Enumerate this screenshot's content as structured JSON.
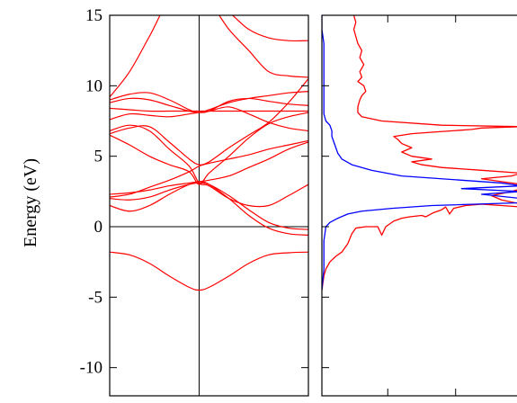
{
  "chart_data": [
    {
      "type": "line",
      "title": "",
      "ylabel": "Energy (eV)",
      "xlabel": "",
      "ylim": [
        -12,
        15
      ],
      "yticks": [
        15,
        10,
        5,
        0,
        -5,
        -10
      ],
      "ytick_labels": [
        "15",
        "10",
        "5",
        "0",
        "-5",
        "-10"
      ],
      "x_range": [
        0,
        1
      ],
      "vline_x": 0.45,
      "hline_y": 0,
      "grid": false,
      "legend": "none",
      "colors": {
        "bands": "#ff0000",
        "axes": "#000000"
      },
      "series": [
        {
          "x": [
            0,
            0.1,
            0.2,
            0.3,
            0.4,
            0.45,
            0.5,
            0.6,
            0.7,
            0.8,
            0.9,
            1.0
          ],
          "values": [
            -1.8,
            -2.0,
            -2.6,
            -3.5,
            -4.3,
            -4.5,
            -4.3,
            -3.5,
            -2.6,
            -2.0,
            -1.85,
            -1.8
          ]
        },
        {
          "x": [
            0,
            0.1,
            0.2,
            0.3,
            0.4,
            0.45,
            0.5,
            0.6,
            0.7,
            0.8,
            0.9,
            1.0
          ],
          "values": [
            1.5,
            1.1,
            1.5,
            2.3,
            3.0,
            3.2,
            3.0,
            2.0,
            0.8,
            -0.1,
            -0.5,
            -0.6
          ]
        },
        {
          "x": [
            0,
            0.1,
            0.2,
            0.3,
            0.4,
            0.45,
            0.5,
            0.6,
            0.7,
            0.8,
            0.9,
            1.0
          ],
          "values": [
            2.0,
            1.9,
            2.1,
            2.6,
            3.0,
            3.1,
            3.0,
            2.2,
            1.2,
            0.3,
            -0.1,
            -0.2
          ]
        },
        {
          "x": [
            0,
            0.1,
            0.2,
            0.3,
            0.4,
            0.45,
            0.5,
            0.6,
            0.7,
            0.8,
            0.9,
            1.0
          ],
          "values": [
            2.3,
            2.4,
            2.6,
            2.9,
            3.1,
            3.2,
            3.3,
            3.6,
            4.2,
            4.8,
            5.5,
            6.0
          ]
        },
        {
          "x": [
            0,
            0.1,
            0.2,
            0.3,
            0.4,
            0.45,
            0.5,
            0.6,
            0.7,
            0.8,
            0.9,
            1.0
          ],
          "values": [
            2.1,
            2.3,
            2.8,
            3.3,
            3.9,
            4.3,
            4.5,
            4.8,
            5.1,
            5.5,
            5.8,
            6.1
          ]
        },
        {
          "x": [
            0,
            0.1,
            0.2,
            0.3,
            0.4,
            0.45,
            0.5,
            0.6,
            0.7,
            0.8,
            0.9,
            1.0
          ],
          "values": [
            6.5,
            5.8,
            5.0,
            4.4,
            3.9,
            3.0,
            3.8,
            5.0,
            6.3,
            7.3,
            7.8,
            8.1
          ]
        },
        {
          "x": [
            0,
            0.1,
            0.2,
            0.3,
            0.4,
            0.45,
            0.5,
            0.6,
            0.7,
            0.8,
            0.9,
            1.0
          ],
          "values": [
            6.8,
            7.2,
            6.8,
            5.5,
            4.3,
            3.1,
            2.9,
            2.0,
            1.5,
            1.5,
            2.2,
            3.0
          ]
        },
        {
          "x": [
            0,
            0.1,
            0.2,
            0.3,
            0.4,
            0.45,
            0.5,
            0.6,
            0.7,
            0.8,
            0.9,
            1.0
          ],
          "values": [
            6.6,
            7.0,
            7.1,
            6.0,
            4.8,
            4.4,
            4.6,
            5.6,
            6.5,
            7.4,
            8.8,
            10.5
          ]
        },
        {
          "x": [
            0,
            0.1,
            0.2,
            0.3,
            0.4,
            0.45,
            0.5,
            0.6,
            0.7,
            0.8,
            0.9,
            1.0
          ],
          "values": [
            7.6,
            8.0,
            7.9,
            7.8,
            8.0,
            8.1,
            8.2,
            8.5,
            8.0,
            7.4,
            7.0,
            6.8
          ]
        },
        {
          "x": [
            0,
            0.1,
            0.2,
            0.3,
            0.4,
            0.45,
            0.5,
            0.6,
            0.7,
            0.8,
            0.9,
            1.0
          ],
          "values": [
            8.8,
            9.1,
            9.0,
            8.6,
            8.2,
            8.1,
            8.2,
            8.9,
            9.1,
            8.9,
            8.7,
            8.6
          ]
        },
        {
          "x": [
            0,
            0.1,
            0.2,
            0.3,
            0.4,
            0.45,
            0.5,
            0.6,
            0.7,
            0.8,
            0.9,
            1.0
          ],
          "values": [
            9.0,
            9.4,
            9.5,
            9.0,
            8.3,
            8.1,
            8.3,
            8.8,
            9.1,
            9.3,
            9.5,
            9.6
          ]
        },
        {
          "x": [
            0,
            0.1,
            0.2,
            0.3,
            0.4,
            0.45,
            0.5,
            0.6,
            0.7,
            0.8,
            0.9,
            1.0
          ],
          "values": [
            8.4,
            8.3,
            8.2,
            8.2,
            8.2,
            8.2,
            8.2,
            8.2,
            8.2,
            8.2,
            8.2,
            8.2
          ]
        },
        {
          "x": [
            0,
            0.1,
            0.2,
            0.3,
            0.4,
            0.45,
            0.5,
            0.6,
            0.7,
            0.8,
            0.9,
            1.0
          ],
          "values": [
            9.2,
            11.0,
            13.5,
            16.0,
            16.0,
            16.0,
            16.0,
            16.0,
            16.0,
            16.0,
            16.0,
            16.0
          ]
        },
        {
          "x": [
            0,
            0.1,
            0.2,
            0.3,
            0.4,
            0.45,
            0.5,
            0.6,
            0.7,
            0.8,
            0.9,
            1.0
          ],
          "values": [
            16.0,
            16.0,
            16.0,
            16.0,
            16.0,
            16.0,
            16.0,
            15.2,
            14.0,
            13.4,
            13.2,
            13.2
          ]
        },
        {
          "x": [
            0,
            0.1,
            0.2,
            0.3,
            0.4,
            0.45,
            0.5,
            0.6,
            0.7,
            0.8,
            0.9,
            1.0
          ],
          "values": [
            16.0,
            16.0,
            16.0,
            16.0,
            16.0,
            16.0,
            16.0,
            14.0,
            12.5,
            11.0,
            10.7,
            10.6
          ]
        }
      ]
    },
    {
      "type": "line",
      "title": "",
      "xlabel": "",
      "ylabel": "",
      "ylim": [
        -12,
        15
      ],
      "xlim": [
        0,
        1
      ],
      "xticks": [
        0.33,
        0.67
      ],
      "yticks": [
        15,
        10,
        5,
        0,
        -5,
        -10
      ],
      "grid": false,
      "legend": "none",
      "colors": {
        "total": "#ff0000",
        "partial": "#0000ff"
      },
      "series": [
        {
          "color": "#ff0000",
          "points": [
            [
              0.0,
              -4.5
            ],
            [
              0.01,
              -3.5
            ],
            [
              0.02,
              -3.0
            ],
            [
              0.04,
              -2.5
            ],
            [
              0.07,
              -2.1
            ],
            [
              0.1,
              -1.8
            ],
            [
              0.13,
              -1.2
            ],
            [
              0.15,
              -0.5
            ],
            [
              0.17,
              -0.1
            ],
            [
              0.22,
              0.0
            ],
            [
              0.28,
              0.0
            ],
            [
              0.3,
              -0.6
            ],
            [
              0.32,
              0.0
            ],
            [
              0.36,
              0.4
            ],
            [
              0.4,
              0.6
            ],
            [
              0.44,
              0.7
            ],
            [
              0.5,
              0.8
            ],
            [
              0.52,
              0.7
            ],
            [
              0.56,
              1.0
            ],
            [
              0.6,
              1.2
            ],
            [
              0.62,
              1.4
            ],
            [
              0.64,
              0.9
            ],
            [
              0.66,
              1.3
            ],
            [
              0.72,
              1.5
            ],
            [
              0.8,
              1.6
            ],
            [
              0.9,
              1.5
            ],
            [
              1.0,
              1.4
            ],
            [
              1.0,
              1.6
            ],
            [
              0.9,
              1.9
            ],
            [
              0.85,
              2.2
            ],
            [
              0.95,
              2.5
            ],
            [
              1.0,
              2.7
            ],
            [
              1.0,
              3.0
            ],
            [
              0.9,
              3.2
            ],
            [
              0.8,
              3.4
            ],
            [
              0.95,
              3.6
            ],
            [
              1.0,
              3.8
            ],
            [
              0.8,
              4.0
            ],
            [
              0.6,
              4.2
            ],
            [
              0.5,
              4.4
            ],
            [
              0.45,
              4.6
            ],
            [
              0.55,
              4.8
            ],
            [
              0.45,
              5.0
            ],
            [
              0.4,
              5.3
            ],
            [
              0.45,
              5.6
            ],
            [
              0.4,
              5.9
            ],
            [
              0.38,
              6.2
            ],
            [
              0.36,
              6.4
            ],
            [
              0.45,
              6.6
            ],
            [
              0.55,
              6.7
            ],
            [
              0.75,
              6.9
            ],
            [
              0.8,
              7.0
            ],
            [
              1.0,
              7.1
            ],
            [
              0.6,
              7.2
            ],
            [
              0.3,
              7.5
            ],
            [
              0.2,
              7.8
            ],
            [
              0.18,
              8.1
            ],
            [
              0.18,
              8.5
            ],
            [
              0.19,
              9.0
            ],
            [
              0.2,
              9.3
            ],
            [
              0.22,
              9.6
            ],
            [
              0.21,
              10.0
            ],
            [
              0.18,
              10.3
            ],
            [
              0.2,
              10.6
            ],
            [
              0.19,
              11.0
            ],
            [
              0.21,
              11.5
            ],
            [
              0.19,
              12.0
            ],
            [
              0.2,
              12.5
            ],
            [
              0.18,
              13.0
            ],
            [
              0.17,
              13.5
            ],
            [
              0.16,
              14.0
            ],
            [
              0.17,
              14.5
            ],
            [
              0.16,
              15.0
            ]
          ]
        },
        {
          "color": "#0000ff",
          "points": [
            [
              0.0,
              -4.5
            ],
            [
              0.01,
              -3.0
            ],
            [
              0.01,
              -1.0
            ],
            [
              0.02,
              0.0
            ],
            [
              0.04,
              0.3
            ],
            [
              0.08,
              0.6
            ],
            [
              0.13,
              0.9
            ],
            [
              0.2,
              1.1
            ],
            [
              0.35,
              1.3
            ],
            [
              0.55,
              1.5
            ],
            [
              1.0,
              1.7
            ],
            [
              1.0,
              2.0
            ],
            [
              0.8,
              2.3
            ],
            [
              1.0,
              2.5
            ],
            [
              0.7,
              2.7
            ],
            [
              1.0,
              2.9
            ],
            [
              0.9,
              3.1
            ],
            [
              0.7,
              3.3
            ],
            [
              0.4,
              3.6
            ],
            [
              0.25,
              4.0
            ],
            [
              0.15,
              4.4
            ],
            [
              0.1,
              4.8
            ],
            [
              0.08,
              5.2
            ],
            [
              0.07,
              5.6
            ],
            [
              0.06,
              6.0
            ],
            [
              0.05,
              6.4
            ],
            [
              0.05,
              6.8
            ],
            [
              0.04,
              7.2
            ],
            [
              0.02,
              7.5
            ],
            [
              0.01,
              8.0
            ],
            [
              0.01,
              9.0
            ],
            [
              0.01,
              10.0
            ],
            [
              0.01,
              11.0
            ],
            [
              0.01,
              12.0
            ],
            [
              0.01,
              13.0
            ],
            [
              0.0,
              14.0
            ],
            [
              0.0,
              15.0
            ]
          ]
        }
      ]
    }
  ]
}
